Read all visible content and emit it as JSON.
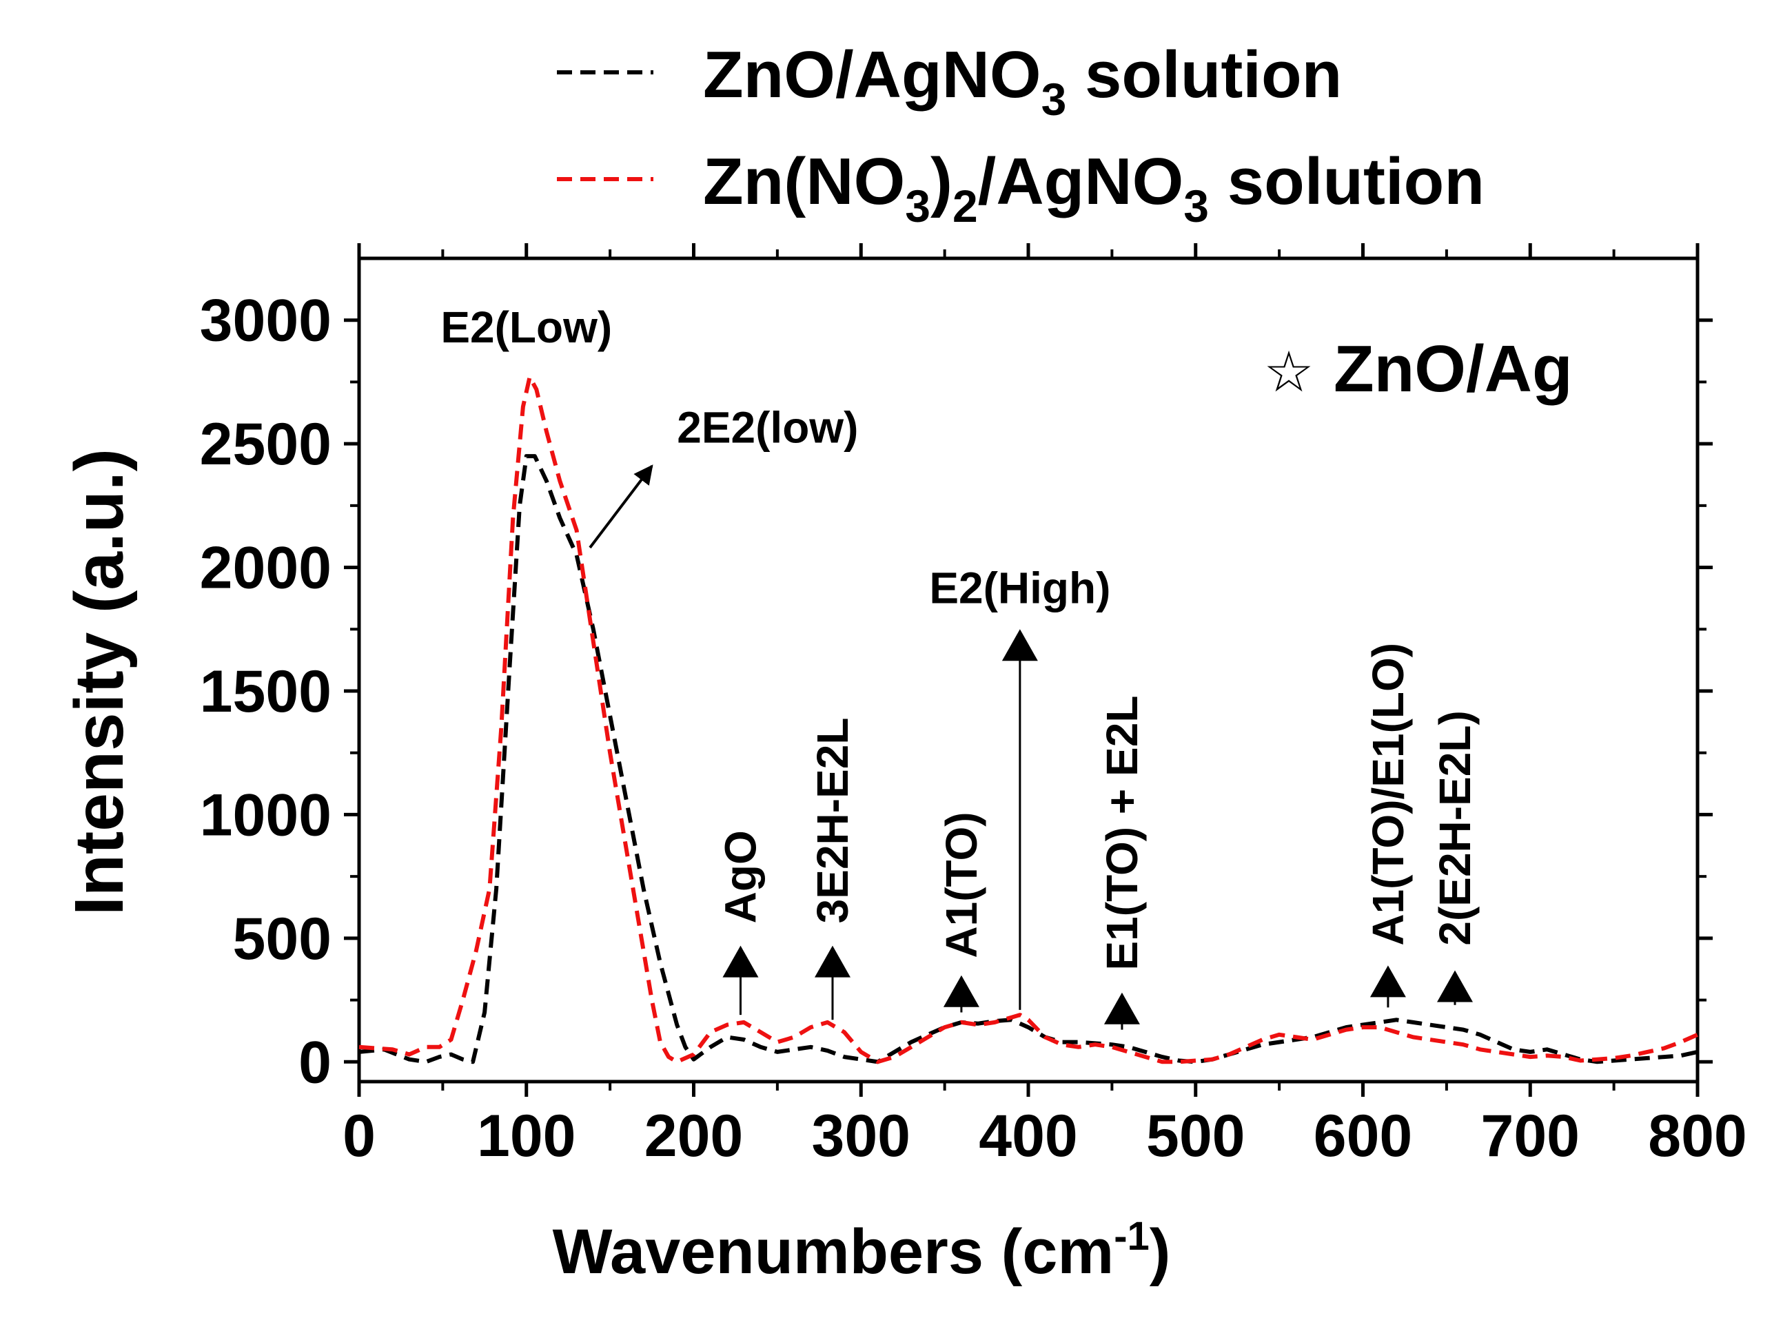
{
  "chart_data": {
    "type": "line",
    "title": "",
    "xlabel": "Wavenumbers (cm",
    "xlabel_sup": "-1",
    "xlabel_close": ")",
    "ylabel": "Intensity (a.u.)",
    "xlim": [
      0,
      800
    ],
    "ylim": [
      -80,
      3250
    ],
    "xticks": [
      0,
      100,
      200,
      300,
      400,
      500,
      600,
      700,
      800
    ],
    "yticks": [
      0,
      500,
      1000,
      1500,
      2000,
      2500,
      3000
    ],
    "grid": false,
    "legend_position": "top",
    "legend": [
      {
        "series_index": 0,
        "parts": [
          {
            "t": "ZnO/AgNO"
          },
          {
            "t": "3",
            "sub": true
          },
          {
            "t": " solution"
          }
        ]
      },
      {
        "series_index": 1,
        "parts": [
          {
            "t": "Zn(NO"
          },
          {
            "t": "3",
            "sub": true
          },
          {
            "t": ")"
          },
          {
            "t": "2",
            "sub": true
          },
          {
            "t": "/AgNO"
          },
          {
            "t": "3",
            "sub": true
          },
          {
            "t": " solution"
          }
        ]
      }
    ],
    "series": [
      {
        "name": "ZnO/AgNO3 solution",
        "color": "#000000",
        "dash": "dashed",
        "x": [
          0,
          15,
          30,
          40,
          48,
          55,
          62,
          68,
          75,
          82,
          90,
          96,
          100,
          105,
          112,
          120,
          130,
          140,
          150,
          160,
          170,
          180,
          190,
          195,
          200,
          210,
          220,
          230,
          240,
          250,
          260,
          270,
          280,
          290,
          300,
          310,
          320,
          330,
          340,
          350,
          360,
          370,
          380,
          390,
          400,
          410,
          420,
          430,
          440,
          450,
          460,
          470,
          480,
          490,
          500,
          510,
          520,
          530,
          540,
          550,
          560,
          570,
          580,
          590,
          600,
          610,
          620,
          630,
          640,
          650,
          660,
          670,
          680,
          690,
          700,
          710,
          720,
          730,
          740,
          750,
          760,
          770,
          780,
          790,
          800
        ],
        "y": [
          40,
          50,
          10,
          0,
          20,
          30,
          10,
          0,
          200,
          700,
          1600,
          2250,
          2450,
          2450,
          2350,
          2200,
          2050,
          1750,
          1400,
          1050,
          700,
          400,
          150,
          60,
          10,
          60,
          100,
          90,
          60,
          40,
          50,
          60,
          45,
          20,
          10,
          0,
          40,
          80,
          110,
          140,
          160,
          155,
          165,
          170,
          140,
          100,
          80,
          80,
          75,
          70,
          60,
          40,
          20,
          5,
          0,
          10,
          30,
          50,
          70,
          80,
          90,
          100,
          120,
          140,
          150,
          160,
          170,
          160,
          150,
          140,
          130,
          110,
          80,
          50,
          40,
          50,
          30,
          10,
          0,
          5,
          10,
          15,
          20,
          25,
          40
        ]
      },
      {
        "name": "Zn(NO3)2/AgNO3 solution",
        "color": "#ee1111",
        "dash": "dashed",
        "x": [
          0,
          10,
          20,
          30,
          40,
          48,
          55,
          62,
          70,
          78,
          85,
          92,
          98,
          102,
          106,
          112,
          120,
          130,
          140,
          150,
          160,
          170,
          175,
          180,
          185,
          190,
          200,
          210,
          220,
          230,
          240,
          250,
          260,
          270,
          280,
          290,
          300,
          310,
          320,
          330,
          340,
          350,
          360,
          370,
          380,
          390,
          395,
          400,
          410,
          420,
          430,
          440,
          450,
          460,
          470,
          480,
          490,
          500,
          510,
          520,
          530,
          540,
          550,
          560,
          570,
          580,
          590,
          600,
          610,
          620,
          630,
          640,
          650,
          660,
          670,
          680,
          690,
          700,
          710,
          720,
          730,
          740,
          750,
          760,
          770,
          780,
          790,
          800
        ],
        "y": [
          60,
          55,
          50,
          30,
          60,
          60,
          90,
          250,
          450,
          700,
          1350,
          2200,
          2650,
          2770,
          2720,
          2550,
          2350,
          2150,
          1700,
          1250,
          850,
          450,
          250,
          80,
          20,
          0,
          30,
          120,
          150,
          160,
          120,
          80,
          100,
          140,
          160,
          120,
          40,
          0,
          20,
          60,
          100,
          140,
          160,
          150,
          160,
          180,
          190,
          170,
          100,
          70,
          60,
          70,
          60,
          40,
          20,
          0,
          0,
          5,
          10,
          30,
          60,
          90,
          110,
          100,
          90,
          110,
          130,
          140,
          140,
          120,
          100,
          90,
          80,
          70,
          50,
          40,
          30,
          20,
          25,
          20,
          5,
          10,
          15,
          25,
          40,
          55,
          80,
          110
        ]
      }
    ],
    "annotations": [
      {
        "text": "E2(Low)",
        "x": 100,
        "y": 2910,
        "rotate": false
      },
      {
        "text": "2E2(low)",
        "x": 190,
        "y": 2505,
        "rotate": false
      },
      {
        "text": "E2(High)",
        "x": 395,
        "y": 1855,
        "rotate": false
      },
      {
        "text": "AgO",
        "x": 228,
        "y": 560,
        "rotate": true
      },
      {
        "text": "3E2H-E2L",
        "x": 283,
        "y": 560,
        "rotate": true
      },
      {
        "text": "A1(TO)",
        "x": 360,
        "y": 420,
        "rotate": true
      },
      {
        "text": "E1(TO) + E2L",
        "x": 456,
        "y": 370,
        "rotate": true
      },
      {
        "text": "A1(TO)/E1(LO)",
        "x": 615,
        "y": 470,
        "rotate": true
      },
      {
        "text": "2(E2H-E2L)",
        "x": 655,
        "y": 470,
        "rotate": true
      }
    ],
    "markers": [
      {
        "x": 228,
        "from": 190,
        "to": 470
      },
      {
        "x": 283,
        "from": 170,
        "to": 470
      },
      {
        "x": 360,
        "from": 200,
        "to": 350
      },
      {
        "x": 395,
        "from": 210,
        "to": 1750
      },
      {
        "x": 456,
        "from": 130,
        "to": 280
      },
      {
        "x": 615,
        "from": 220,
        "to": 390
      },
      {
        "x": 655,
        "from": 230,
        "to": 370
      }
    ],
    "arrow_2e2": {
      "x1": 138,
      "y1": 2080,
      "x2": 175,
      "y2": 2410
    },
    "inset_label": {
      "symbol": "☆",
      "text": "ZnO/Ag"
    }
  }
}
